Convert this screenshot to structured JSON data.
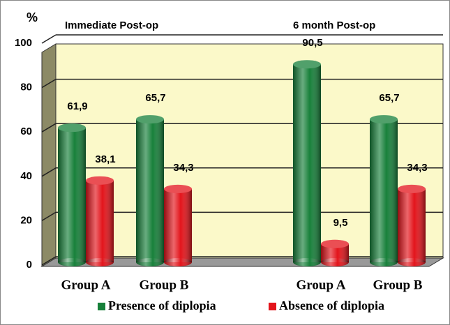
{
  "chart_data": {
    "type": "bar",
    "y_label": "%",
    "groups": [
      "Immediate Post-op",
      "6 month Post-op"
    ],
    "categories": [
      "Group A",
      "Group B",
      "Group A",
      "Group B"
    ],
    "series": [
      {
        "name": "Presence of diplopia",
        "color": "#17803a",
        "values": [
          61.9,
          65.7,
          90.5,
          65.7
        ],
        "value_labels": [
          "61,9",
          "65,7",
          "90,5",
          "65,7"
        ]
      },
      {
        "name": "Absence of diplopia",
        "color": "#e3141b",
        "values": [
          38.1,
          34.3,
          9.5,
          34.3
        ],
        "value_labels": [
          "38,1",
          "34,3",
          "9,5",
          "34,3"
        ]
      }
    ],
    "ylim": [
      0,
      100
    ],
    "yticks": [
      0,
      20,
      40,
      60,
      80,
      100
    ],
    "grid": true
  }
}
